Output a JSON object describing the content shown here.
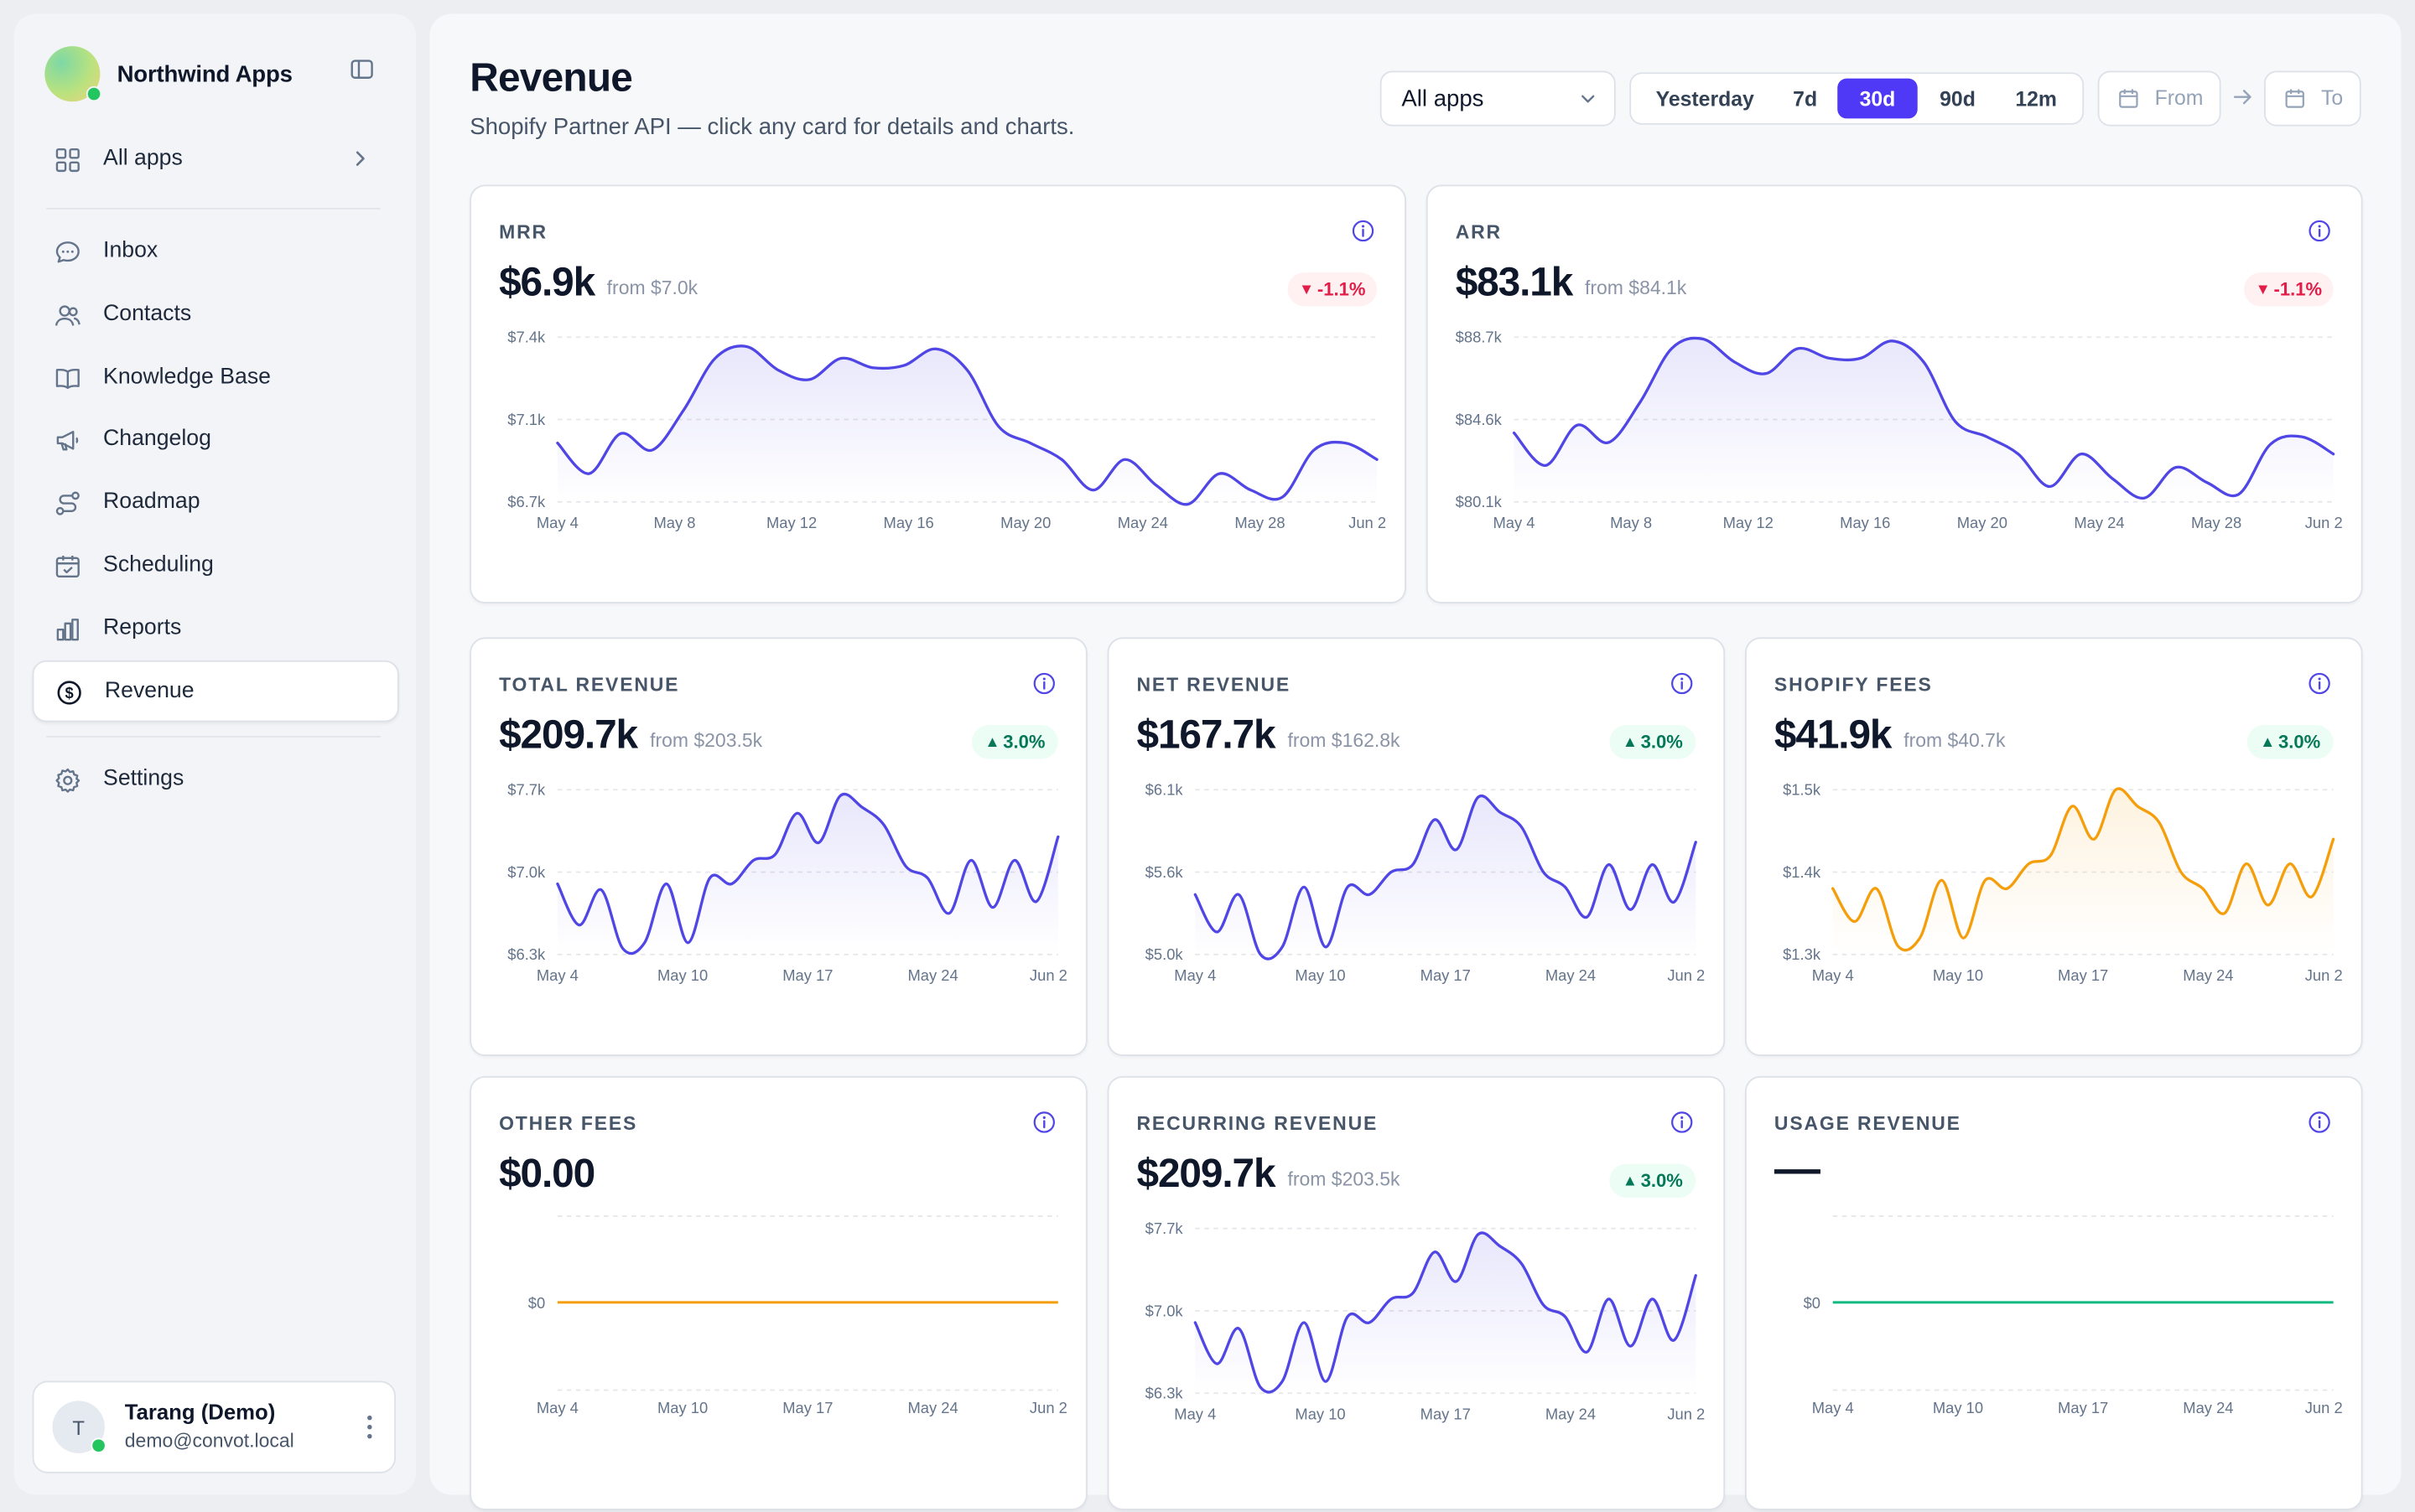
{
  "brand": {
    "name": "Northwind Apps"
  },
  "sidebar": {
    "apps_label": "All apps",
    "items": [
      {
        "label": "Inbox",
        "icon": "chat-bubble-icon"
      },
      {
        "label": "Contacts",
        "icon": "users-icon"
      },
      {
        "label": "Knowledge Base",
        "icon": "book-open-icon"
      },
      {
        "label": "Changelog",
        "icon": "megaphone-icon"
      },
      {
        "label": "Roadmap",
        "icon": "route-icon"
      },
      {
        "label": "Scheduling",
        "icon": "calendar-check-icon"
      },
      {
        "label": "Reports",
        "icon": "bar-chart-icon"
      },
      {
        "label": "Revenue",
        "icon": "dollar-circle-icon",
        "active": true
      }
    ],
    "settings_label": "Settings"
  },
  "user": {
    "initial": "T",
    "name": "Tarang (Demo)",
    "email": "demo@convot.local"
  },
  "page": {
    "title": "Revenue",
    "subtitle": "Shopify Partner API — click any card for details and charts."
  },
  "filters": {
    "app_select": "All apps",
    "ranges": [
      "Yesterday",
      "7d",
      "30d",
      "90d",
      "12m"
    ],
    "active_range": "30d",
    "from_placeholder": "From",
    "to_placeholder": "To"
  },
  "colors": {
    "accent": "#4f39f6",
    "line_purple": "#4f46e5",
    "line_orange": "#f59e0b",
    "line_green": "#10b981",
    "down": "#e11d48",
    "up": "#047857"
  },
  "cards": [
    {
      "label": "MRR",
      "value": "$6.9k",
      "from": "from $7.0k",
      "change": "-1.1%",
      "direction": "down"
    },
    {
      "label": "ARR",
      "value": "$83.1k",
      "from": "from $84.1k",
      "change": "-1.1%",
      "direction": "down"
    },
    {
      "label": "TOTAL REVENUE",
      "value": "$209.7k",
      "from": "from $203.5k",
      "change": "3.0%",
      "direction": "up"
    },
    {
      "label": "NET REVENUE",
      "value": "$167.7k",
      "from": "from $162.8k",
      "change": "3.0%",
      "direction": "up"
    },
    {
      "label": "SHOPIFY FEES",
      "value": "$41.9k",
      "from": "from $40.7k",
      "change": "3.0%",
      "direction": "up"
    },
    {
      "label": "OTHER FEES",
      "value": "$0.00",
      "from": "",
      "change": "",
      "direction": ""
    },
    {
      "label": "RECURRING REVENUE",
      "value": "$209.7k",
      "from": "from $203.5k",
      "change": "3.0%",
      "direction": "up"
    },
    {
      "label": "USAGE REVENUE",
      "value": "—",
      "from": "",
      "change": "",
      "direction": ""
    }
  ],
  "chart_data": [
    {
      "type": "area",
      "title": "MRR",
      "color": "#4f46e5",
      "ylim": [
        6.7,
        7.4
      ],
      "yticks": [
        "$7.4k",
        "$7.1k",
        "$6.7k"
      ],
      "xticks": [
        "May 4",
        "May 8",
        "May 12",
        "May 16",
        "May 20",
        "May 24",
        "May 28",
        "Jun 2"
      ],
      "series": [
        {
          "values": [
            6.95,
            6.82,
            6.99,
            6.92,
            7.09,
            7.31,
            7.36,
            7.26,
            7.22,
            7.31,
            7.27,
            7.28,
            7.35,
            7.26,
            7.02,
            6.95,
            6.88,
            6.75,
            6.88,
            6.77,
            6.69,
            6.82,
            6.75,
            6.72,
            6.92,
            6.95,
            6.88
          ]
        }
      ]
    },
    {
      "type": "area",
      "title": "ARR",
      "color": "#4f46e5",
      "ylim": [
        80.1,
        88.7
      ],
      "yticks": [
        "$88.7k",
        "$84.6k",
        "$80.1k"
      ],
      "xticks": [
        "May 4",
        "May 8",
        "May 12",
        "May 16",
        "May 20",
        "May 24",
        "May 28",
        "Jun 2"
      ],
      "series": [
        {
          "values": [
            83.7,
            82.0,
            84.1,
            83.2,
            85.3,
            88.1,
            88.6,
            87.4,
            86.8,
            88.1,
            87.6,
            87.6,
            88.5,
            87.4,
            84.3,
            83.5,
            82.6,
            80.9,
            82.6,
            81.3,
            80.3,
            81.9,
            81.1,
            80.5,
            83.1,
            83.5,
            82.6
          ]
        }
      ]
    },
    {
      "type": "area",
      "title": "TOTAL REVENUE",
      "color": "#4f46e5",
      "ylim": [
        6.3,
        7.7
      ],
      "yticks": [
        "$7.7k",
        "$7.0k",
        "$6.3k"
      ],
      "xticks": [
        "May 4",
        "May 10",
        "May 17",
        "May 24",
        "Jun 2"
      ],
      "series": [
        {
          "values": [
            6.9,
            6.55,
            6.85,
            6.35,
            6.4,
            6.9,
            6.4,
            6.95,
            6.9,
            7.1,
            7.15,
            7.5,
            7.25,
            7.65,
            7.55,
            7.4,
            7.05,
            6.95,
            6.65,
            7.1,
            6.7,
            7.1,
            6.75,
            7.3
          ]
        }
      ]
    },
    {
      "type": "area",
      "title": "NET REVENUE",
      "color": "#4f46e5",
      "ylim": [
        5.0,
        6.1
      ],
      "yticks": [
        "$6.1k",
        "$5.6k",
        "$5.0k"
      ],
      "xticks": [
        "May 4",
        "May 10",
        "May 17",
        "May 24",
        "Jun 2"
      ],
      "series": [
        {
          "values": [
            5.4,
            5.15,
            5.4,
            5.0,
            5.05,
            5.45,
            5.05,
            5.45,
            5.4,
            5.55,
            5.6,
            5.9,
            5.7,
            6.05,
            5.95,
            5.85,
            5.55,
            5.45,
            5.25,
            5.6,
            5.3,
            5.6,
            5.35,
            5.75
          ]
        }
      ]
    },
    {
      "type": "area",
      "title": "SHOPIFY FEES",
      "color": "#f59e0b",
      "ylim": [
        1.3,
        1.5
      ],
      "yticks": [
        "$1.5k",
        "$1.4k",
        "$1.3k"
      ],
      "xticks": [
        "May 4",
        "May 10",
        "May 17",
        "May 24",
        "Jun 2"
      ],
      "series": [
        {
          "values": [
            1.38,
            1.34,
            1.38,
            1.31,
            1.32,
            1.39,
            1.32,
            1.39,
            1.38,
            1.41,
            1.42,
            1.48,
            1.44,
            1.5,
            1.48,
            1.46,
            1.4,
            1.38,
            1.35,
            1.41,
            1.36,
            1.41,
            1.37,
            1.44
          ]
        }
      ]
    },
    {
      "type": "line",
      "title": "OTHER FEES",
      "color": "#f59e0b",
      "yticks": [
        "$0"
      ],
      "xticks": [
        "May 4",
        "May 10",
        "May 17",
        "May 24",
        "Jun 2"
      ],
      "series": [
        {
          "values": [
            0,
            0
          ]
        }
      ]
    },
    {
      "type": "area",
      "title": "RECURRING REVENUE",
      "color": "#4f46e5",
      "ylim": [
        6.3,
        7.7
      ],
      "yticks": [
        "$7.7k",
        "$7.0k",
        "$6.3k"
      ],
      "xticks": [
        "May 4",
        "May 10",
        "May 17",
        "May 24",
        "Jun 2"
      ],
      "series": [
        {
          "values": [
            6.9,
            6.55,
            6.85,
            6.35,
            6.4,
            6.9,
            6.4,
            6.95,
            6.9,
            7.1,
            7.15,
            7.5,
            7.25,
            7.65,
            7.55,
            7.4,
            7.05,
            6.95,
            6.65,
            7.1,
            6.7,
            7.1,
            6.75,
            7.3
          ]
        }
      ]
    },
    {
      "type": "line",
      "title": "USAGE REVENUE",
      "color": "#10b981",
      "yticks": [
        "$0"
      ],
      "xticks": [
        "May 4",
        "May 10",
        "May 17",
        "May 24",
        "Jun 2"
      ],
      "series": [
        {
          "values": [
            0,
            0
          ]
        }
      ]
    }
  ]
}
